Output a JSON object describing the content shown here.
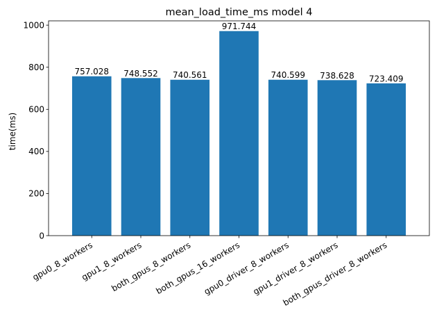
{
  "chart_data": {
    "type": "bar",
    "title": "mean_load_time_ms model 4",
    "xlabel": "",
    "ylabel": "time(ms)",
    "categories": [
      "gpu0_8_workers",
      "gpu1_8_workers",
      "both_gpus_8_workers",
      "both_gpus_16_workers",
      "gpu0_driver_8_workers",
      "gpu1_driver_8_workers",
      "both_gpus_driver_8_workers"
    ],
    "values": [
      757.028,
      748.552,
      740.561,
      971.744,
      740.599,
      738.628,
      723.409
    ],
    "value_labels": [
      "757.028",
      "748.552",
      "740.561",
      "971.744",
      "740.599",
      "738.628",
      "723.409"
    ],
    "yticks": [
      0,
      200,
      400,
      600,
      800,
      1000
    ],
    "ylim": [
      0,
      1020.33
    ],
    "grid": false,
    "legend": "none",
    "bar_color": "#1f77b4"
  }
}
